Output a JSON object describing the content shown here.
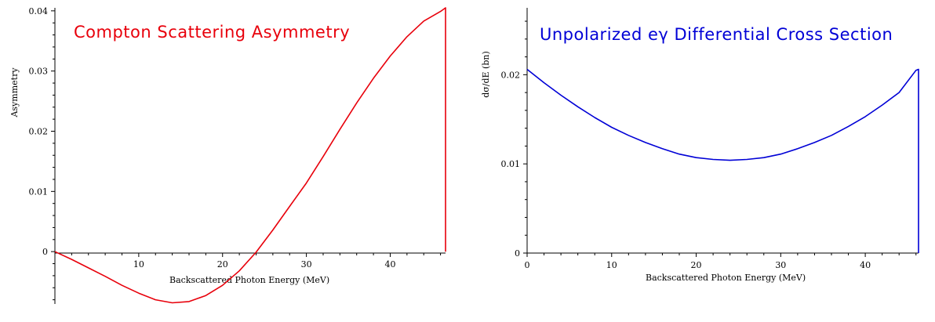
{
  "chart_data": [
    {
      "type": "line",
      "title": "Compton  Scattering  Asymmetry",
      "xlabel": "Backscattered Photon Energy (MeV)",
      "ylabel": "Asymmetry",
      "xlim": [
        0,
        46.6
      ],
      "ylim": [
        -0.0087,
        0.0405
      ],
      "x_ticks": [
        "10",
        "20",
        "30",
        "40"
      ],
      "y_ticks": [
        "0",
        "0.01",
        "0.02",
        "0.03",
        "0.04"
      ],
      "color": "#e8000b",
      "series": [
        {
          "x": [
            0,
            2,
            4,
            6,
            8,
            10,
            12,
            14,
            16,
            18,
            20,
            22,
            24,
            26,
            28,
            30,
            32,
            34,
            36,
            38,
            40,
            42,
            44,
            46,
            46.6,
            46.6
          ],
          "y": [
            0,
            -0.0013,
            -0.0027,
            -0.0041,
            -0.0056,
            -0.0069,
            -0.008,
            -0.0085,
            -0.0083,
            -0.0073,
            -0.0056,
            -0.0032,
            -0.0001,
            0.0036,
            0.0075,
            0.0114,
            0.0158,
            0.0203,
            0.0247,
            0.0288,
            0.0325,
            0.0357,
            0.0383,
            0.0399,
            0.0405,
            0
          ]
        }
      ]
    },
    {
      "type": "line",
      "title": "Unpolarized  eγ  Differential  Cross  Section",
      "xlabel": "Backscattered Photon Energy (MeV)",
      "ylabel": "dσ/dE (bn)",
      "xlim": [
        0,
        46.3
      ],
      "ylim": [
        0,
        0.0275
      ],
      "x_ticks": [
        "0",
        "10",
        "20",
        "30",
        "40"
      ],
      "y_ticks": [
        "0",
        "0.01",
        "0.02"
      ],
      "color": "#0000d6",
      "series": [
        {
          "x": [
            0,
            2,
            4,
            6,
            8,
            10,
            12,
            14,
            16,
            18,
            20,
            22,
            24,
            26,
            28,
            30,
            32,
            34,
            36,
            38,
            40,
            42,
            44,
            46,
            46.3,
            46.3
          ],
          "y": [
            0.0206,
            0.0191,
            0.0177,
            0.0164,
            0.0152,
            0.0141,
            0.0132,
            0.0124,
            0.0117,
            0.0111,
            0.0107,
            0.0105,
            0.0104,
            0.0105,
            0.0107,
            0.0111,
            0.0117,
            0.0124,
            0.0132,
            0.0142,
            0.0153,
            0.0166,
            0.018,
            0.0205,
            0.0206,
            0
          ]
        }
      ]
    }
  ]
}
